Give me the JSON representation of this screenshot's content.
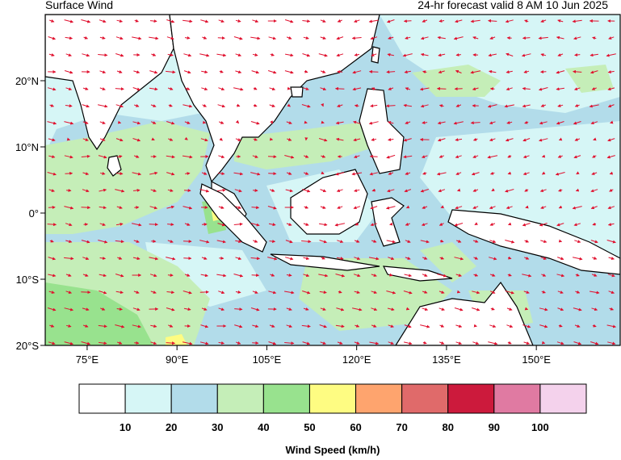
{
  "header": {
    "title": "Surface Wind",
    "valid": "24-hr forecast valid 8 AM 10 Jun 2025"
  },
  "map": {
    "lon_range": [
      68,
      164
    ],
    "lat_range": [
      -20,
      30
    ],
    "lon_ticks": [
      {
        "value": 75,
        "label": "75°E"
      },
      {
        "value": 90,
        "label": "90°E"
      },
      {
        "value": 105,
        "label": "105°E"
      },
      {
        "value": 120,
        "label": "120°E"
      },
      {
        "value": 135,
        "label": "135°E"
      },
      {
        "value": 150,
        "label": "150°E"
      }
    ],
    "lat_ticks": [
      {
        "value": 20,
        "label": "20°N"
      },
      {
        "value": 10,
        "label": "10°N"
      },
      {
        "value": 0,
        "label": "0°"
      },
      {
        "value": -10,
        "label": "10°S"
      },
      {
        "value": -20,
        "label": "20°S"
      }
    ],
    "arrow_color": "#e0102e",
    "coast_color": "#000000"
  },
  "colorbar": {
    "title": "Wind Speed (km/h)",
    "colors": [
      "#ffffff",
      "#d6f6f6",
      "#b2dcea",
      "#c5eeb8",
      "#98e28e",
      "#fefc82",
      "#fea46e",
      "#e06a6a",
      "#cc1a3c",
      "#e07aa2",
      "#f4d2ec"
    ],
    "labels": [
      "10",
      "20",
      "30",
      "40",
      "50",
      "60",
      "70",
      "80",
      "90",
      "100"
    ]
  }
}
